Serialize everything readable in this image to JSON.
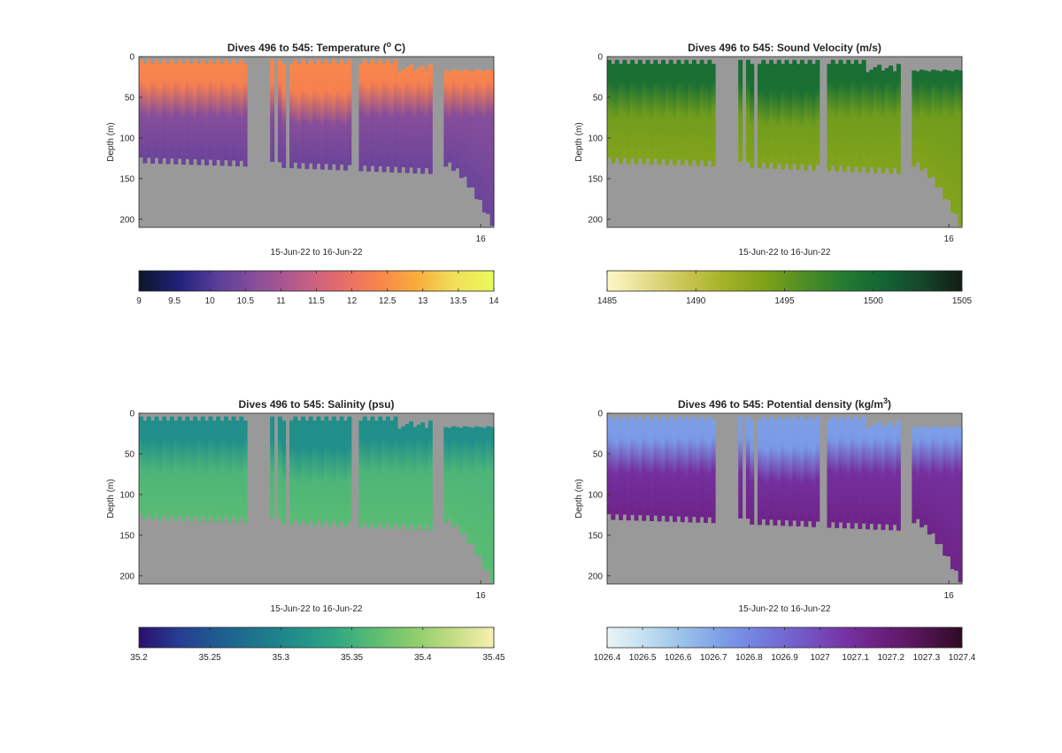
{
  "chart_data": [
    {
      "type": "heatmap",
      "title_prefix": "Dives 496 to 545: Temperature (",
      "title_sup": "o",
      "title_suffix": " C)",
      "xlabel": "15-Jun-22 to 16-Jun-22",
      "ylabel": "Depth (m)",
      "ylim": [
        0,
        210
      ],
      "yticks": [
        0,
        50,
        100,
        150,
        200
      ],
      "xtick_labels": [
        "16"
      ],
      "background_color": "#999999",
      "colormap": [
        "#0b1628",
        "#20217a",
        "#5a3f9a",
        "#8a4f9a",
        "#b95b8a",
        "#e2696e",
        "#f7824d",
        "#f8ab3c",
        "#f2df59",
        "#e8fa5b"
      ],
      "colorbar": {
        "min": 9,
        "max": 14,
        "ticks": [
          "9",
          "9.5",
          "10",
          "10.5",
          "11",
          "11.5",
          "12",
          "12.5",
          "13",
          "13.5",
          "14"
        ]
      },
      "surface_value": 12.4,
      "deep_value": 10.3
    },
    {
      "type": "heatmap",
      "title_prefix": "Dives 496 to 545: Sound Velocity (m/s)",
      "title_sup": "",
      "title_suffix": "",
      "xlabel": "15-Jun-22 to 16-Jun-22",
      "ylabel": "Depth (m)",
      "ylim": [
        0,
        210
      ],
      "yticks": [
        0,
        50,
        100,
        150,
        200
      ],
      "xtick_labels": [
        "16"
      ],
      "background_color": "#999999",
      "colormap": [
        "#fcf8c9",
        "#e5dc8c",
        "#c8c451",
        "#a3b126",
        "#7ea11a",
        "#4f8e25",
        "#237c31",
        "#136534",
        "#16452b",
        "#111d14"
      ],
      "colorbar": {
        "min": 1485,
        "max": 1505,
        "ticks": [
          "1485",
          "1490",
          "1495",
          "1500",
          "1505"
        ]
      },
      "surface_value": 1499.8,
      "deep_value": 1493.6
    },
    {
      "type": "heatmap",
      "title_prefix": "Dives 496 to 545: Salinity (psu)",
      "title_sup": "",
      "title_suffix": "",
      "xlabel": "15-Jun-22 to 16-Jun-22",
      "ylabel": "Depth (m)",
      "ylim": [
        0,
        210
      ],
      "yticks": [
        0,
        50,
        100,
        150,
        200
      ],
      "xtick_labels": [
        "16"
      ],
      "background_color": "#999999",
      "colormap": [
        "#28106c",
        "#273c92",
        "#1f5c8f",
        "#1e768c",
        "#218f8a",
        "#31a783",
        "#5cbd72",
        "#8fcd6b",
        "#c5dd85",
        "#f7f0b0"
      ],
      "colorbar": {
        "min": 35.2,
        "max": 35.45,
        "ticks": [
          "35.2",
          "35.25",
          "35.3",
          "35.35",
          "35.4",
          "35.45"
        ]
      },
      "surface_value": 35.31,
      "deep_value": 35.365
    },
    {
      "type": "heatmap",
      "title_prefix": "Dives 496 to 545: Potential density (kg/m",
      "title_sup": "3",
      "title_suffix": ")",
      "xlabel": "15-Jun-22 to 16-Jun-22",
      "ylabel": "Depth (m)",
      "ylim": [
        0,
        210
      ],
      "yticks": [
        0,
        50,
        100,
        150,
        200
      ],
      "xtick_labels": [
        "16"
      ],
      "background_color": "#999999",
      "colormap": [
        "#e9f5f6",
        "#c1def0",
        "#97bfea",
        "#7a9be6",
        "#7379dd",
        "#7457c6",
        "#7634a5",
        "#6b1f7e",
        "#531554",
        "#2f0b22"
      ],
      "colorbar": {
        "min": 1026.4,
        "max": 1027.4,
        "ticks": [
          "1026.4",
          "1026.5",
          "1026.6",
          "1026.7",
          "1026.8",
          "1026.9",
          "1027",
          "1027.1",
          "1027.2",
          "1027.3",
          "1027.4"
        ]
      },
      "surface_value": 1026.72,
      "deep_value": 1027.15
    }
  ]
}
